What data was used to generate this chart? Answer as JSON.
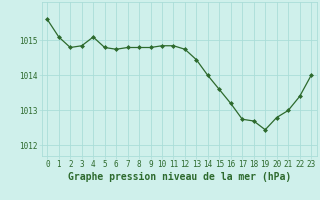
{
  "x": [
    0,
    1,
    2,
    3,
    4,
    5,
    6,
    7,
    8,
    9,
    10,
    11,
    12,
    13,
    14,
    15,
    16,
    17,
    18,
    19,
    20,
    21,
    22,
    23
  ],
  "y": [
    1015.6,
    1015.1,
    1014.8,
    1014.85,
    1015.1,
    1014.8,
    1014.75,
    1014.8,
    1014.8,
    1014.8,
    1014.85,
    1014.85,
    1014.75,
    1014.45,
    1014.0,
    1013.6,
    1013.2,
    1012.75,
    1012.7,
    1012.45,
    1012.8,
    1013.0,
    1013.4,
    1014.0
  ],
  "line_color": "#2d6a2d",
  "marker_color": "#2d6a2d",
  "bg_color": "#cff0eb",
  "grid_color": "#aaddd8",
  "xlabel": "Graphe pression niveau de la mer (hPa)",
  "xlabel_color": "#2d6a2d",
  "ylabel_ticks": [
    1012,
    1013,
    1014,
    1015
  ],
  "ylim": [
    1011.7,
    1016.1
  ],
  "xlim": [
    -0.5,
    23.5
  ],
  "xticks": [
    0,
    1,
    2,
    3,
    4,
    5,
    6,
    7,
    8,
    9,
    10,
    11,
    12,
    13,
    14,
    15,
    16,
    17,
    18,
    19,
    20,
    21,
    22,
    23
  ],
  "tick_fontsize": 5.5,
  "xlabel_fontsize": 7.0
}
